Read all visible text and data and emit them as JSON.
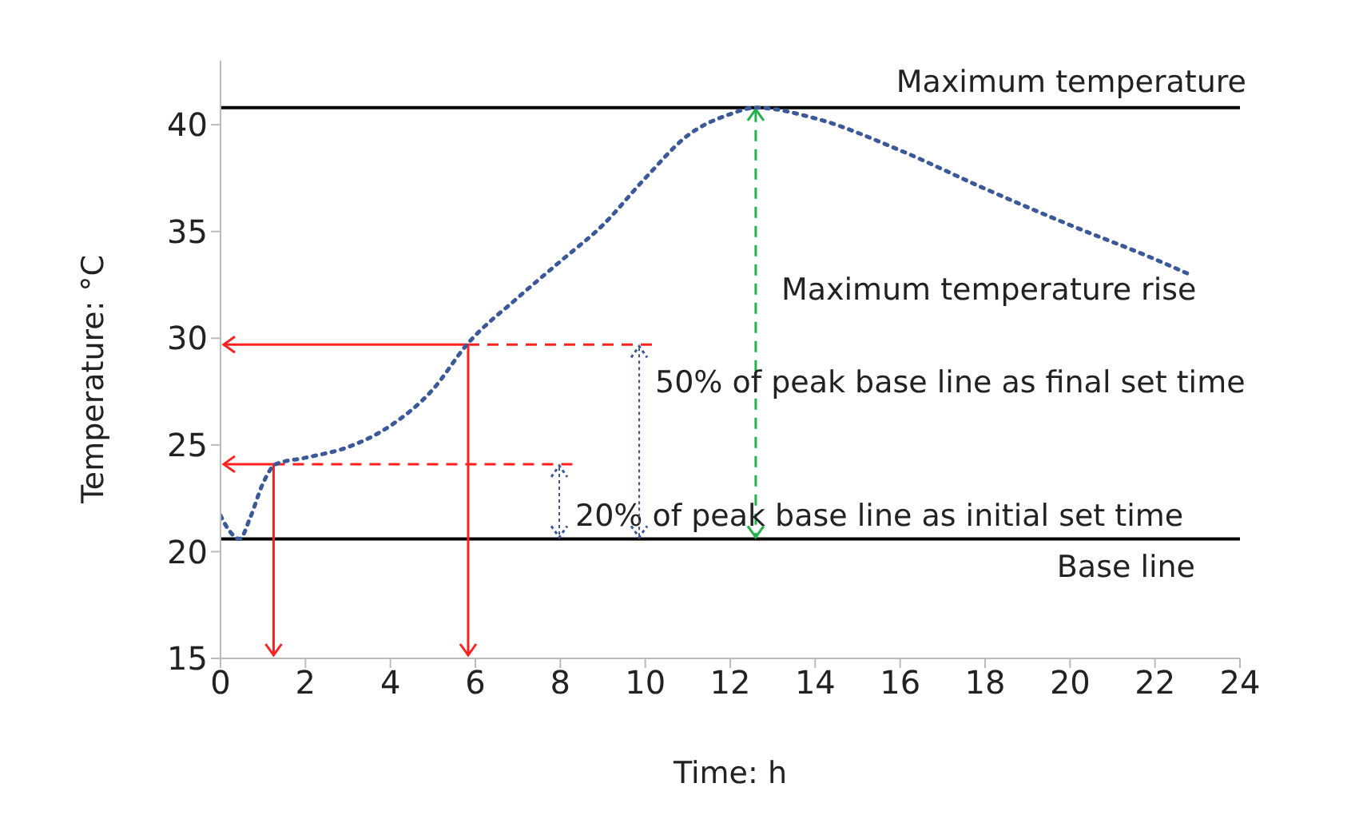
{
  "chart_data": {
    "type": "line",
    "xlabel": "Time: h",
    "ylabel": "Temperature: °C",
    "x": [
      0,
      0.2,
      0.45,
      0.7,
      1,
      1.3,
      2,
      3,
      4,
      5,
      5.8,
      7,
      8,
      9,
      10,
      11,
      12,
      12.6,
      14,
      16,
      18,
      20,
      22,
      22.8
    ],
    "series": [
      {
        "color": "#3b5998",
        "values": [
          21.7,
          21,
          20.6,
          21.6,
          23.2,
          24.1,
          24.4,
          24.9,
          25.9,
          27.6,
          29.7,
          31.9,
          33.6,
          35.3,
          37.5,
          39.5,
          40.5,
          40.8,
          40.3,
          38.8,
          37,
          35.3,
          33.7,
          33
        ]
      }
    ],
    "xlim": [
      0,
      24
    ],
    "xticks": [
      0,
      2,
      4,
      6,
      8,
      10,
      12,
      14,
      16,
      18,
      20,
      22,
      24
    ],
    "ylim": [
      15,
      43
    ],
    "yticks": [
      15,
      20,
      25,
      30,
      35,
      40
    ],
    "line_style": "dotted",
    "marker": "none",
    "grid": false,
    "legend": false,
    "ref_lines": [
      {
        "axis": "y",
        "value": 20.6,
        "label": "Base line",
        "color": "#000000",
        "line_style": "solid"
      },
      {
        "axis": "y",
        "value": 40.8,
        "label": "Maximum temperature",
        "color": "#000000",
        "line_style": "solid"
      },
      {
        "axis": "x",
        "value": 12.6,
        "label": "Maximum temperature rise",
        "color": "#22b14c",
        "line_style": "dashed"
      },
      {
        "axis": "y",
        "value": 24.1,
        "label": "20% of peak base line as initial set time",
        "color": "#ff2020",
        "line_style": "dashed"
      },
      {
        "axis": "y",
        "value": 29.7,
        "label": "50% of peak base line as final set time",
        "color": "#ff2020",
        "line_style": "dashed"
      },
      {
        "axis": "x",
        "value": 1.25,
        "color": "#ff2020",
        "line_style": "solid"
      },
      {
        "axis": "x",
        "value": 5.83,
        "color": "#ff2020",
        "line_style": "solid"
      }
    ]
  }
}
